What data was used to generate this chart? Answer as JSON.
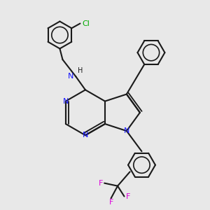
{
  "bg_color": "#e8e8e8",
  "bond_color": "#1a1a1a",
  "nitrogen_color": "#1414ff",
  "chlorine_color": "#00aa00",
  "fluorine_color": "#dd00dd",
  "lw": 1.5,
  "figsize": [
    3.0,
    3.0
  ],
  "dpi": 100,
  "xlim": [
    -1.5,
    8.5
  ],
  "ylim": [
    -2.5,
    8.5
  ]
}
